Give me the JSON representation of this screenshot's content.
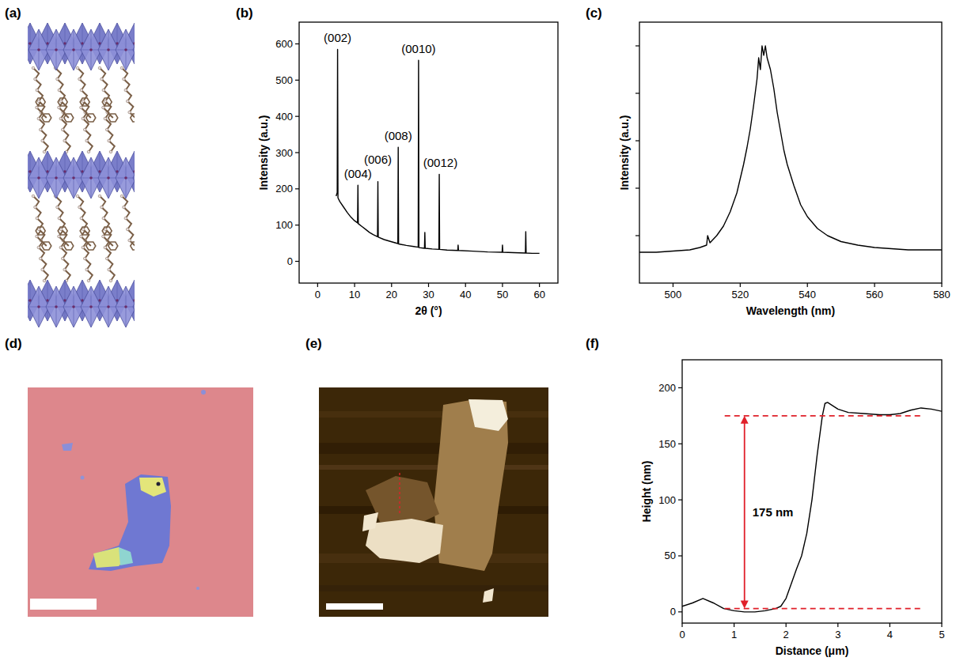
{
  "panel_labels": [
    "(a)",
    "(b)",
    "(c)",
    "(d)",
    "(e)",
    "(f)"
  ],
  "chart_data": [
    {
      "type": "line",
      "x_label": "2θ (°)",
      "y_label": "Intensity (a.u.)",
      "x": [
        5.0,
        5.3,
        5.4,
        5.5,
        6,
        7,
        8,
        9,
        10,
        10.8,
        10.9,
        11.0,
        12,
        13,
        14,
        15,
        16.2,
        16.3,
        16.4,
        18,
        20,
        21.7,
        21.8,
        21.9,
        24,
        26,
        27.2,
        27.3,
        27.4,
        28.9,
        29.0,
        29.1,
        31,
        32.8,
        32.9,
        33.0,
        35,
        37.9,
        38.0,
        38.1,
        42,
        46,
        49.9,
        50.0,
        50.1,
        53,
        56.2,
        56.3,
        56.4,
        58,
        60
      ],
      "series": [
        {
          "color": "#000000",
          "values": [
            180,
            190,
            585,
            175,
            165,
            150,
            135,
            122,
            112,
            106,
            210,
            104,
            96,
            88,
            80,
            74,
            68,
            220,
            67,
            60,
            54,
            49,
            315,
            48,
            44,
            41,
            39,
            555,
            38,
            36,
            80,
            36,
            34,
            33,
            240,
            33,
            31,
            30,
            45,
            30,
            28,
            26,
            25,
            45,
            25,
            24,
            23,
            82,
            23,
            22,
            22
          ]
        }
      ],
      "xlim": [
        -5,
        65
      ],
      "ylim": [
        -60,
        660
      ],
      "xticks": [
        0,
        10,
        20,
        30,
        40,
        50,
        60
      ],
      "yticks": [
        0,
        100,
        200,
        300,
        400,
        500,
        600
      ],
      "annotations": [
        {
          "text": "(002)",
          "x": 5.4,
          "y": 605
        },
        {
          "text": "(004)",
          "x": 10.9,
          "y": 230
        },
        {
          "text": "(006)",
          "x": 16.3,
          "y": 270
        },
        {
          "text": "(008)",
          "x": 21.8,
          "y": 335
        },
        {
          "text": "(0010)",
          "x": 27.3,
          "y": 575
        },
        {
          "text": "(0012)",
          "x": 33.2,
          "y": 260
        }
      ]
    },
    {
      "type": "line",
      "x_label": "Wavelength (nm)",
      "y_label": "Intensity (a.u.)",
      "x": [
        490,
        495,
        500,
        505,
        508,
        510,
        510.3,
        511,
        513,
        515,
        517,
        519,
        520,
        521,
        522,
        523,
        524,
        525,
        525.5,
        526,
        526.5,
        527,
        527.5,
        528,
        529,
        530,
        531,
        532,
        533,
        534,
        536,
        538,
        540,
        543,
        546,
        550,
        555,
        560,
        565,
        570,
        575,
        580
      ],
      "series": [
        {
          "color": "#000000",
          "values": [
            0.13,
            0.13,
            0.135,
            0.14,
            0.15,
            0.16,
            0.2,
            0.17,
            0.2,
            0.24,
            0.3,
            0.38,
            0.44,
            0.5,
            0.57,
            0.65,
            0.75,
            0.86,
            0.95,
            0.9,
            1.0,
            0.96,
            1.0,
            0.95,
            0.9,
            0.82,
            0.72,
            0.64,
            0.56,
            0.5,
            0.41,
            0.33,
            0.28,
            0.23,
            0.2,
            0.175,
            0.16,
            0.15,
            0.145,
            0.14,
            0.14,
            0.14
          ]
        }
      ],
      "xlim": [
        490,
        580
      ],
      "ylim": [
        0,
        1.1
      ],
      "xticks": [
        500,
        520,
        540,
        560,
        580
      ],
      "yticks": [
        0.2,
        0.4,
        0.6,
        0.8,
        1.0
      ],
      "tick_labels": "x"
    },
    {
      "type": "line",
      "x_label": "Distance (μm)",
      "y_label": "Height (nm)",
      "x": [
        0,
        0.2,
        0.4,
        0.6,
        0.8,
        1.0,
        1.2,
        1.4,
        1.6,
        1.8,
        1.9,
        2.0,
        2.1,
        2.2,
        2.3,
        2.4,
        2.5,
        2.6,
        2.7,
        2.75,
        2.8,
        2.9,
        3.0,
        3.2,
        3.5,
        3.8,
        4.0,
        4.2,
        4.4,
        4.6,
        4.8,
        5.0
      ],
      "series": [
        {
          "color": "#000000",
          "values": [
            5,
            8,
            12,
            8,
            3,
            1,
            0,
            0,
            1,
            3,
            5,
            12,
            25,
            38,
            50,
            70,
            100,
            140,
            175,
            186,
            187,
            184,
            181,
            178,
            177,
            176,
            176,
            177,
            180,
            182,
            181,
            179
          ]
        }
      ],
      "xlim": [
        0,
        5
      ],
      "ylim": [
        -10,
        225
      ],
      "xticks": [
        0,
        1,
        2,
        3,
        4,
        5
      ],
      "yticks": [
        0,
        50,
        100,
        150,
        200
      ],
      "annotations": [
        {
          "text": "175 nm",
          "x": 1.2,
          "y_from": 3,
          "y_to": 175
        }
      ]
    }
  ]
}
